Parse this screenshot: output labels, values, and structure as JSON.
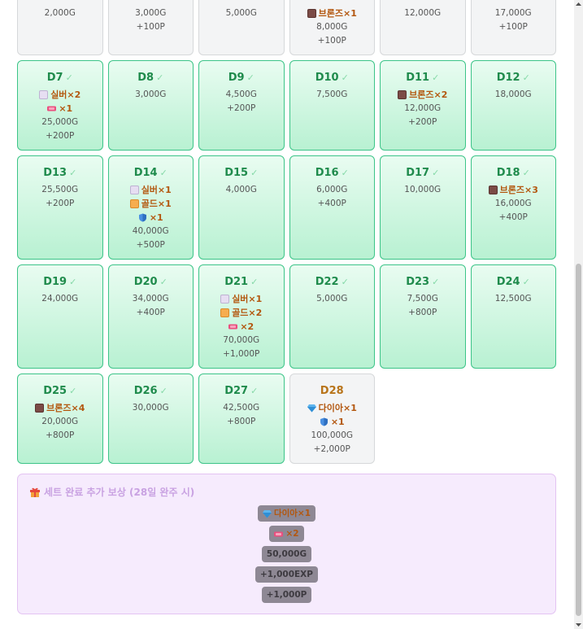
{
  "days": [
    {
      "items": [],
      "gold": "2,000G"
    },
    {
      "items": [],
      "gold": "3,000G",
      "points": "+100P"
    },
    {
      "items": [],
      "gold": "5,000G"
    },
    {
      "items": [
        {
          "icon": "bronze",
          "label": "브론즈×1"
        }
      ],
      "gold": "8,000G",
      "points": "+100P"
    },
    {
      "items": [],
      "gold": "12,000G"
    },
    {
      "items": [],
      "gold": "17,000G",
      "points": "+100P"
    },
    {
      "day": "D7",
      "check": "✓",
      "items": [
        {
          "icon": "silver",
          "label": "실버×2"
        },
        {
          "icon": "ticket",
          "label": "×1"
        }
      ],
      "gold": "25,000G",
      "points": "+200P"
    },
    {
      "day": "D8",
      "check": "✓",
      "items": [],
      "gold": "3,000G"
    },
    {
      "day": "D9",
      "check": "✓",
      "items": [],
      "gold": "4,500G",
      "points": "+200P"
    },
    {
      "day": "D10",
      "check": "✓",
      "items": [],
      "gold": "7,500G"
    },
    {
      "day": "D11",
      "check": "✓",
      "items": [
        {
          "icon": "bronze",
          "label": "브론즈×2"
        }
      ],
      "gold": "12,000G",
      "points": "+200P"
    },
    {
      "day": "D12",
      "check": "✓",
      "items": [],
      "gold": "18,000G"
    },
    {
      "day": "D13",
      "check": "✓",
      "items": [],
      "gold": "25,500G",
      "points": "+200P"
    },
    {
      "day": "D14",
      "check": "✓",
      "items": [
        {
          "icon": "silver",
          "label": "실버×1"
        },
        {
          "icon": "gold",
          "label": "골드×1"
        },
        {
          "icon": "shield",
          "label": "×1"
        }
      ],
      "gold": "40,000G",
      "points": "+500P"
    },
    {
      "day": "D15",
      "check": "✓",
      "items": [],
      "gold": "4,000G"
    },
    {
      "day": "D16",
      "check": "✓",
      "items": [],
      "gold": "6,000G",
      "points": "+400P"
    },
    {
      "day": "D17",
      "check": "✓",
      "items": [],
      "gold": "10,000G"
    },
    {
      "day": "D18",
      "check": "✓",
      "items": [
        {
          "icon": "bronze",
          "label": "브론즈×3"
        }
      ],
      "gold": "16,000G",
      "points": "+400P"
    },
    {
      "day": "D19",
      "check": "✓",
      "items": [],
      "gold": "24,000G"
    },
    {
      "day": "D20",
      "check": "✓",
      "items": [],
      "gold": "34,000G",
      "points": "+400P"
    },
    {
      "day": "D21",
      "check": "✓",
      "items": [
        {
          "icon": "silver",
          "label": "실버×1"
        },
        {
          "icon": "gold",
          "label": "골드×2"
        },
        {
          "icon": "ticket",
          "label": "×2"
        }
      ],
      "gold": "70,000G",
      "points": "+1,000P"
    },
    {
      "day": "D22",
      "check": "✓",
      "items": [],
      "gold": "5,000G"
    },
    {
      "day": "D23",
      "check": "✓",
      "items": [],
      "gold": "7,500G",
      "points": "+800P"
    },
    {
      "day": "D24",
      "check": "✓",
      "items": [],
      "gold": "12,500G"
    },
    {
      "day": "D25",
      "check": "✓",
      "items": [
        {
          "icon": "bronze",
          "label": "브론즈×4"
        }
      ],
      "gold": "20,000G",
      "points": "+800P"
    },
    {
      "day": "D26",
      "check": "✓",
      "items": [],
      "gold": "30,000G"
    },
    {
      "day": "D27",
      "check": "✓",
      "items": [],
      "gold": "42,500G",
      "points": "+800P"
    },
    {
      "day": "D28",
      "items": [
        {
          "icon": "diamond",
          "label": "다이아×1"
        },
        {
          "icon": "shield",
          "label": "×1"
        }
      ],
      "gold": "100,000G",
      "points": "+2,000P"
    }
  ],
  "bonus": {
    "title": "세트 완료 추가 보상 (28일 완주 시)",
    "rewards": [
      {
        "icon": "diamond",
        "label": "다이아×1"
      },
      {
        "icon": "ticket",
        "label": "×2"
      },
      {
        "label": "50,000G"
      },
      {
        "label": "+1,000EXP"
      },
      {
        "label": "+1,000P"
      }
    ]
  }
}
